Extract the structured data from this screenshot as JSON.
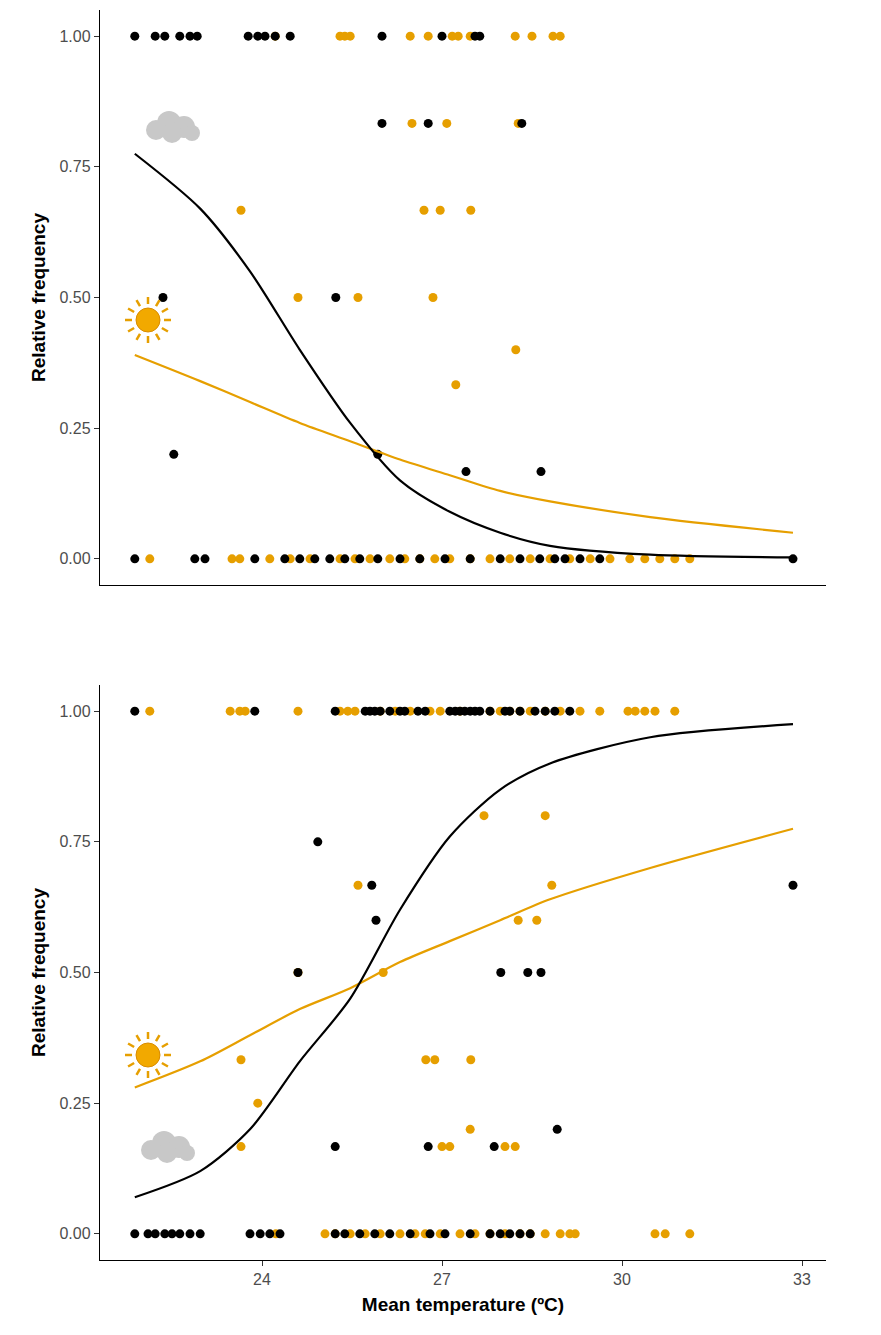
{
  "chart_data": [
    {
      "type": "scatter",
      "y_label": "Relative frequency",
      "xlim": [
        21.3,
        33.4
      ],
      "ylim": [
        -0.05,
        1.05
      ],
      "yticks": [
        {
          "value": 0,
          "label": "0.00"
        },
        {
          "value": 0.25,
          "label": "0.25"
        },
        {
          "value": 0.5,
          "label": "0.50"
        },
        {
          "value": 0.75,
          "label": "0.75"
        },
        {
          "value": 1,
          "label": "1.00"
        }
      ],
      "tick_labels": "y",
      "grid": false,
      "series": [
        {
          "type": "scatter",
          "marker": "circle",
          "color": "#e69f00",
          "x": [
            24.22,
            25.3,
            25.38,
            25.47,
            26.47,
            26.77,
            27.17,
            27.27,
            27.47,
            28.22,
            28.5,
            28.85,
            28.97,
            26.5,
            27.08,
            28.27,
            23.65,
            26.7,
            26.97,
            27.48,
            24.6,
            25.6,
            26.85,
            28.23,
            27.23,
            22.13,
            23.5,
            23.63,
            24.13,
            24.47,
            24.8,
            25.3,
            25.55,
            25.8,
            26.13,
            26.38,
            26.63,
            26.88,
            27.13,
            27.47,
            27.8,
            28.13,
            28.47,
            28.8,
            29.13,
            29.47,
            29.8,
            30.13,
            30.38,
            30.63,
            30.88,
            31.13
          ],
          "values": [
            1,
            1,
            1,
            1,
            1,
            1,
            1,
            1,
            1,
            1,
            1,
            1,
            1,
            0.833,
            0.833,
            0.833,
            0.667,
            0.667,
            0.667,
            0.667,
            0.5,
            0.5,
            0.5,
            0.4,
            0.333,
            0,
            0,
            0,
            0,
            0,
            0,
            0,
            0,
            0,
            0,
            0,
            0,
            0,
            0,
            0,
            0,
            0,
            0,
            0,
            0,
            0,
            0,
            0,
            0,
            0,
            0,
            0
          ]
        },
        {
          "type": "scatter",
          "marker": "circle",
          "color": "#000000",
          "x": [
            21.88,
            22.22,
            22.38,
            22.63,
            22.8,
            22.92,
            23.77,
            23.93,
            24.05,
            24.22,
            24.47,
            26.0,
            27.0,
            27.55,
            27.63,
            26.0,
            26.77,
            28.33,
            22.35,
            25.23,
            22.53,
            25.93,
            27.4,
            28.65,
            21.88,
            22.88,
            23.05,
            23.88,
            24.38,
            24.63,
            24.88,
            25.13,
            25.38,
            25.63,
            25.93,
            26.3,
            26.63,
            27.05,
            27.47,
            27.97,
            28.3,
            28.63,
            28.88,
            29.05,
            29.3,
            29.63,
            32.85
          ],
          "values": [
            1,
            1,
            1,
            1,
            1,
            1,
            1,
            1,
            1,
            1,
            1,
            1,
            1,
            1,
            1,
            0.833,
            0.833,
            0.833,
            0.5,
            0.5,
            0.2,
            0.2,
            0.167,
            0.167,
            0,
            0,
            0,
            0,
            0,
            0,
            0,
            0,
            0,
            0,
            0,
            0,
            0,
            0,
            0,
            0,
            0,
            0,
            0,
            0,
            0,
            0,
            0
          ]
        },
        {
          "type": "line",
          "line_style": "solid",
          "color": "#e69f00",
          "x": [
            21.88,
            22.97,
            23.8,
            24.63,
            25.47,
            26.3,
            27.13,
            27.97,
            28.8,
            30.47,
            32.85
          ],
          "values": [
            0.39,
            0.34,
            0.3,
            0.26,
            0.225,
            0.19,
            0.16,
            0.13,
            0.11,
            0.08,
            0.05
          ]
        },
        {
          "type": "line",
          "line_style": "solid",
          "color": "#000000",
          "x": [
            21.88,
            22.97,
            23.8,
            24.63,
            25.47,
            26.3,
            27.13,
            27.97,
            28.8,
            30.47,
            32.85
          ],
          "values": [
            0.775,
            0.67,
            0.55,
            0.4,
            0.26,
            0.15,
            0.09,
            0.05,
            0.025,
            0.008,
            0.003
          ]
        }
      ]
    },
    {
      "type": "scatter",
      "x_label": "Mean temperature (ºC)",
      "y_label": "Relative frequency",
      "xlim": [
        21.3,
        33.4
      ],
      "xticks": [
        24,
        27,
        30,
        33
      ],
      "ylim": [
        -0.05,
        1.05
      ],
      "yticks": [
        {
          "value": 0,
          "label": "0.00"
        },
        {
          "value": 0.25,
          "label": "0.25"
        },
        {
          "value": 0.5,
          "label": "0.50"
        },
        {
          "value": 0.75,
          "label": "0.75"
        },
        {
          "value": 1,
          "label": "1.00"
        }
      ],
      "grid": false,
      "series": [
        {
          "type": "scatter",
          "marker": "circle",
          "color": "#e69f00",
          "x": [
            22.13,
            23.47,
            23.63,
            23.72,
            24.6,
            25.3,
            25.43,
            25.55,
            25.97,
            26.22,
            26.47,
            26.8,
            26.97,
            27.3,
            27.8,
            27.97,
            28.13,
            28.3,
            28.47,
            28.72,
            28.97,
            29.3,
            29.63,
            30.1,
            30.22,
            30.38,
            30.55,
            30.88,
            25.6,
            28.27,
            28.58,
            24.6,
            26.02,
            27.7,
            28.72,
            28.83,
            23.65,
            26.73,
            26.88,
            27.48,
            23.93,
            27.47,
            23.65,
            27.0,
            27.13,
            28.05,
            28.22,
            24.23,
            25.05,
            25.22,
            25.47,
            25.72,
            25.97,
            26.3,
            26.55,
            26.72,
            26.97,
            27.3,
            27.55,
            27.8,
            28.05,
            28.3,
            28.47,
            28.72,
            28.97,
            29.13,
            29.22,
            30.55,
            30.72,
            31.13
          ],
          "values": [
            1,
            1,
            1,
            1,
            1,
            1,
            1,
            1,
            1,
            1,
            1,
            1,
            1,
            1,
            1,
            1,
            1,
            1,
            1,
            1,
            1,
            1,
            1,
            1,
            1,
            1,
            1,
            1,
            0.667,
            0.6,
            0.6,
            0.5,
            0.5,
            0.8,
            0.8,
            0.667,
            0.333,
            0.333,
            0.333,
            0.333,
            0.25,
            0.2,
            0.167,
            0.167,
            0.167,
            0.167,
            0.167,
            0,
            0,
            0,
            0,
            0,
            0,
            0,
            0,
            0,
            0,
            0,
            0,
            0,
            0,
            0,
            0,
            0,
            0,
            0,
            0,
            0,
            0,
            0
          ]
        },
        {
          "type": "scatter",
          "marker": "circle",
          "color": "#000000",
          "x": [
            21.88,
            23.88,
            25.22,
            25.72,
            25.8,
            25.88,
            25.97,
            26.13,
            26.3,
            26.38,
            26.6,
            26.72,
            27.13,
            27.22,
            27.3,
            27.38,
            27.47,
            27.55,
            27.63,
            27.8,
            28.05,
            28.13,
            28.3,
            28.55,
            28.72,
            28.88,
            29.13,
            24.93,
            25.83,
            25.9,
            24.6,
            27.98,
            28.43,
            28.65,
            28.92,
            25.22,
            26.77,
            27.87,
            32.85,
            21.88,
            22.1,
            22.22,
            22.38,
            22.5,
            22.63,
            22.8,
            22.97,
            23.8,
            23.97,
            24.13,
            24.3,
            25.22,
            25.38,
            25.63,
            25.88,
            26.13,
            26.47,
            26.8,
            27.05,
            27.47,
            27.8,
            27.97,
            28.13,
            28.3,
            28.47
          ],
          "values": [
            1,
            1,
            1,
            1,
            1,
            1,
            1,
            1,
            1,
            1,
            1,
            1,
            1,
            1,
            1,
            1,
            1,
            1,
            1,
            1,
            1,
            1,
            1,
            1,
            1,
            1,
            1,
            0.75,
            0.667,
            0.6,
            0.5,
            0.5,
            0.5,
            0.5,
            0.2,
            0.167,
            0.167,
            0.167,
            0.667,
            0,
            0,
            0,
            0,
            0,
            0,
            0,
            0,
            0,
            0,
            0,
            0,
            0,
            0,
            0,
            0,
            0,
            0,
            0,
            0,
            0,
            0,
            0,
            0,
            0,
            0
          ]
        },
        {
          "type": "line",
          "line_style": "solid",
          "color": "#e69f00",
          "x": [
            21.88,
            22.97,
            23.8,
            24.63,
            25.47,
            26.3,
            27.13,
            27.97,
            28.8,
            30.47,
            32.85
          ],
          "values": [
            0.28,
            0.33,
            0.38,
            0.43,
            0.47,
            0.52,
            0.56,
            0.6,
            0.64,
            0.7,
            0.775
          ]
        },
        {
          "type": "line",
          "line_style": "solid",
          "color": "#000000",
          "x": [
            21.88,
            22.97,
            23.8,
            24.63,
            25.47,
            26.3,
            27.13,
            27.97,
            28.8,
            30.47,
            32.85
          ],
          "values": [
            0.07,
            0.12,
            0.2,
            0.33,
            0.45,
            0.62,
            0.76,
            0.85,
            0.9,
            0.95,
            0.975
          ]
        }
      ]
    }
  ]
}
